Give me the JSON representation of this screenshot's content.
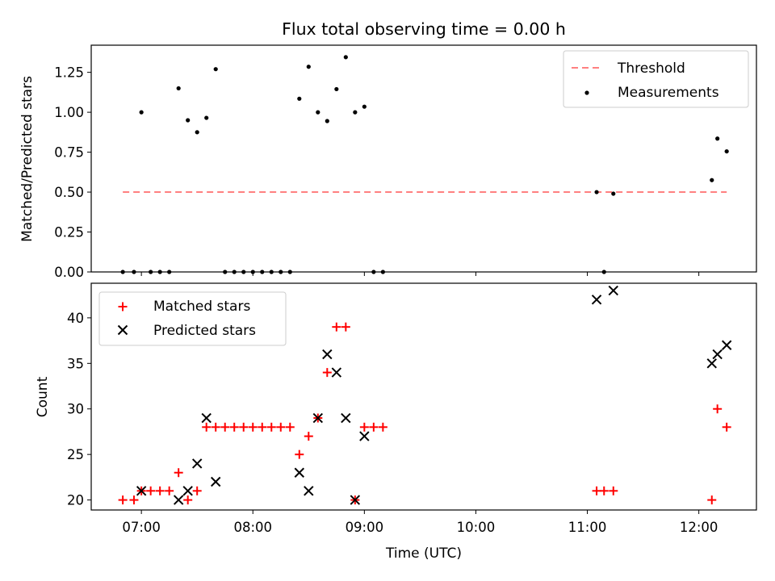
{
  "title": "Flux total observing time = 0.00 h",
  "chart_data": [
    {
      "type": "scatter",
      "ylabel": "Matched/Predicted stars",
      "ylim": [
        0,
        1.42
      ],
      "xlim": [
        "06:33",
        "12:31"
      ],
      "yticks": [
        0,
        0.25,
        0.5,
        0.75,
        1.0,
        1.25
      ],
      "ytick_labels": [
        "0.00",
        "0.25",
        "0.50",
        "0.75",
        "1.00",
        "1.25"
      ],
      "legend": "top-right",
      "threshold": {
        "name": "Threshold",
        "value": 0.5,
        "x": [
          "06:50",
          "12:15"
        ],
        "color": "#ff8080",
        "style": "dashed"
      },
      "series": [
        {
          "name": "Measurements",
          "color": "#000000",
          "marker": "dot",
          "points": [
            [
              "06:50",
              0
            ],
            [
              "06:56",
              0
            ],
            [
              "07:00",
              1.0
            ],
            [
              "07:05",
              0
            ],
            [
              "07:10",
              0
            ],
            [
              "07:15",
              0
            ],
            [
              "07:20",
              1.15
            ],
            [
              "07:25",
              0.95
            ],
            [
              "07:30",
              0.875
            ],
            [
              "07:35",
              0.965
            ],
            [
              "07:40",
              1.27
            ],
            [
              "07:45",
              0
            ],
            [
              "07:50",
              0
            ],
            [
              "07:55",
              0
            ],
            [
              "08:00",
              0
            ],
            [
              "08:05",
              0
            ],
            [
              "08:10",
              0
            ],
            [
              "08:15",
              0
            ],
            [
              "08:20",
              0
            ],
            [
              "08:25",
              1.085
            ],
            [
              "08:30",
              1.285
            ],
            [
              "08:35",
              1.0
            ],
            [
              "08:40",
              0.945
            ],
            [
              "08:45",
              1.145
            ],
            [
              "08:50",
              1.345
            ],
            [
              "08:55",
              1.0
            ],
            [
              "09:00",
              1.035
            ],
            [
              "09:05",
              0
            ],
            [
              "09:10",
              0
            ],
            [
              "11:05",
              0.5
            ],
            [
              "11:09",
              0
            ],
            [
              "11:14",
              0.49
            ],
            [
              "12:07",
              0.575
            ],
            [
              "12:10",
              0.835
            ],
            [
              "12:15",
              0.755
            ]
          ]
        }
      ]
    },
    {
      "type": "scatter",
      "xlabel": "Time (UTC)",
      "ylabel": "Count",
      "ylim": [
        18.9,
        43.8
      ],
      "xlim": [
        "06:33",
        "12:31"
      ],
      "xticks": [
        "07:00",
        "08:00",
        "09:00",
        "10:00",
        "11:00",
        "12:00"
      ],
      "yticks": [
        20,
        25,
        30,
        35,
        40
      ],
      "legend": "top-left",
      "series": [
        {
          "name": "Matched stars",
          "color": "#ff0000",
          "marker": "plus",
          "points": [
            [
              "06:50",
              20
            ],
            [
              "06:56",
              20
            ],
            [
              "07:00",
              21
            ],
            [
              "07:05",
              21
            ],
            [
              "07:10",
              21
            ],
            [
              "07:15",
              21
            ],
            [
              "07:20",
              23
            ],
            [
              "07:25",
              20
            ],
            [
              "07:30",
              21
            ],
            [
              "07:35",
              28
            ],
            [
              "07:40",
              28
            ],
            [
              "07:45",
              28
            ],
            [
              "07:50",
              28
            ],
            [
              "07:55",
              28
            ],
            [
              "08:00",
              28
            ],
            [
              "08:05",
              28
            ],
            [
              "08:10",
              28
            ],
            [
              "08:15",
              28
            ],
            [
              "08:20",
              28
            ],
            [
              "08:25",
              25
            ],
            [
              "08:30",
              27
            ],
            [
              "08:35",
              29
            ],
            [
              "08:40",
              34
            ],
            [
              "08:45",
              39
            ],
            [
              "08:50",
              39
            ],
            [
              "08:55",
              20
            ],
            [
              "09:00",
              28
            ],
            [
              "09:05",
              28
            ],
            [
              "09:10",
              28
            ],
            [
              "11:05",
              21
            ],
            [
              "11:09",
              21
            ],
            [
              "11:14",
              21
            ],
            [
              "12:07",
              20
            ],
            [
              "12:10",
              30
            ],
            [
              "12:15",
              28
            ]
          ]
        },
        {
          "name": "Predicted stars",
          "color": "#000000",
          "marker": "x",
          "points": [
            [
              "07:00",
              21
            ],
            [
              "07:20",
              20
            ],
            [
              "07:25",
              21
            ],
            [
              "07:30",
              24
            ],
            [
              "07:35",
              29
            ],
            [
              "07:40",
              22
            ],
            [
              "08:25",
              23
            ],
            [
              "08:30",
              21
            ],
            [
              "08:35",
              29
            ],
            [
              "08:40",
              36
            ],
            [
              "08:45",
              34
            ],
            [
              "08:50",
              29
            ],
            [
              "08:55",
              20
            ],
            [
              "09:00",
              27
            ],
            [
              "11:05",
              42
            ],
            [
              "11:14",
              43
            ],
            [
              "12:07",
              35
            ],
            [
              "12:10",
              36
            ],
            [
              "12:15",
              37
            ]
          ]
        }
      ]
    }
  ]
}
